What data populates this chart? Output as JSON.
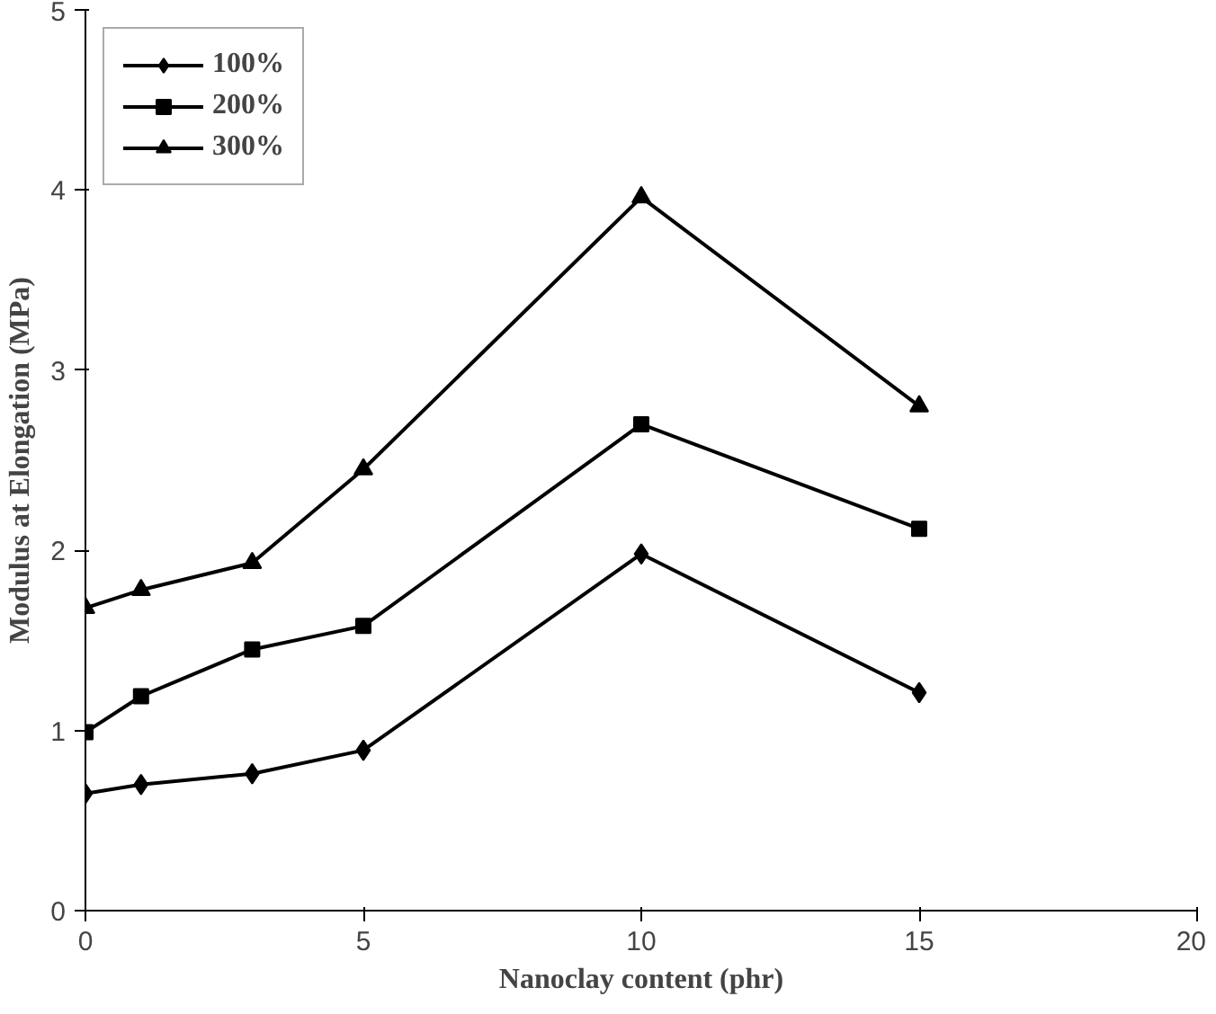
{
  "chart_data": {
    "type": "line",
    "xlabel": "Nanoclay content (phr)",
    "ylabel": "Modulus at Elongation (MPa)",
    "x": [
      0,
      1,
      3,
      5,
      10,
      15
    ],
    "series": [
      {
        "name": "100%",
        "color": "#000000",
        "marker": "diamond",
        "values": [
          0.65,
          0.7,
          0.76,
          0.89,
          1.98,
          1.21
        ]
      },
      {
        "name": "200%",
        "color": "#000000",
        "marker": "square",
        "values": [
          0.99,
          1.19,
          1.45,
          1.58,
          2.7,
          2.12
        ]
      },
      {
        "name": "300%",
        "color": "#000000",
        "marker": "triangle",
        "values": [
          1.68,
          1.78,
          1.93,
          2.45,
          3.96,
          2.8
        ]
      }
    ],
    "xlim": [
      0,
      20
    ],
    "xticks": [
      0,
      5,
      10,
      15,
      20
    ],
    "ylim": [
      0,
      5
    ],
    "yticks": [
      0,
      1,
      2,
      3,
      4,
      5
    ],
    "grid": false,
    "legend": "top left",
    "line_style": "solid"
  }
}
